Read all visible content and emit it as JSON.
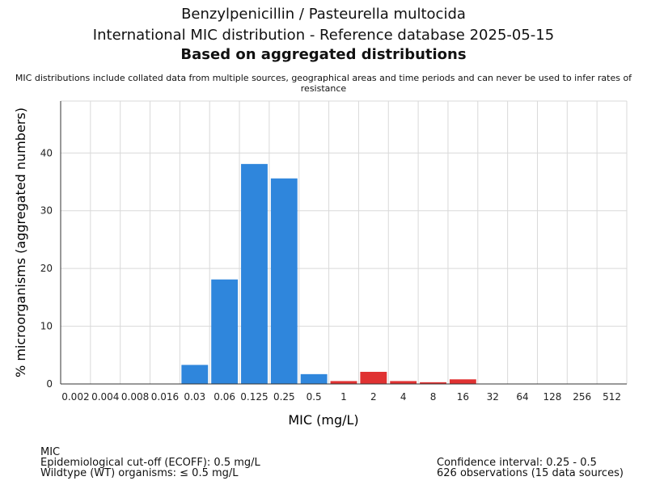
{
  "chart_data": {
    "type": "bar",
    "title": "Benzylpenicillin / Pasteurella multocida",
    "subtitle": "International MIC distribution - Reference database 2025-05-15",
    "subtitle2": "Based on aggregated distributions",
    "note": "MIC distributions include collated data from multiple sources, geographical areas and time periods and can never be used to infer rates of resistance",
    "xlabel": "MIC (mg/L)",
    "ylabel": "% microorganisms (aggregated numbers)",
    "categories": [
      "0.002",
      "0.004",
      "0.008",
      "0.016",
      "0.03",
      "0.06",
      "0.125",
      "0.25",
      "0.5",
      "1",
      "2",
      "4",
      "8",
      "16",
      "32",
      "64",
      "128",
      "256",
      "512"
    ],
    "values": [
      0,
      0,
      0,
      0,
      3.3,
      18.1,
      38.1,
      35.6,
      1.7,
      0.5,
      2.1,
      0.5,
      0.3,
      0.8,
      0,
      0,
      0,
      0,
      0
    ],
    "bar_status": [
      "wt",
      "wt",
      "wt",
      "wt",
      "wt",
      "wt",
      "wt",
      "wt",
      "wt",
      "nwt",
      "nwt",
      "nwt",
      "nwt",
      "nwt",
      "nwt",
      "nwt",
      "nwt",
      "nwt",
      "nwt"
    ],
    "ylim": [
      0,
      49
    ],
    "yticks": [
      0,
      10,
      20,
      30,
      40
    ],
    "grid": true,
    "colors": {
      "wildtype": "#2f86dc",
      "non_wildtype": "#e03232",
      "grid": "#d9d9d9",
      "axis": "#333333"
    }
  },
  "footer": {
    "left": [
      "MIC",
      "Epidemiological cut-off (ECOFF): 0.5 mg/L",
      "Wildtype (WT) organisms: ≤ 0.5 mg/L"
    ],
    "right": [
      "Confidence interval: 0.25 - 0.5",
      "626 observations (15 data sources)"
    ]
  }
}
